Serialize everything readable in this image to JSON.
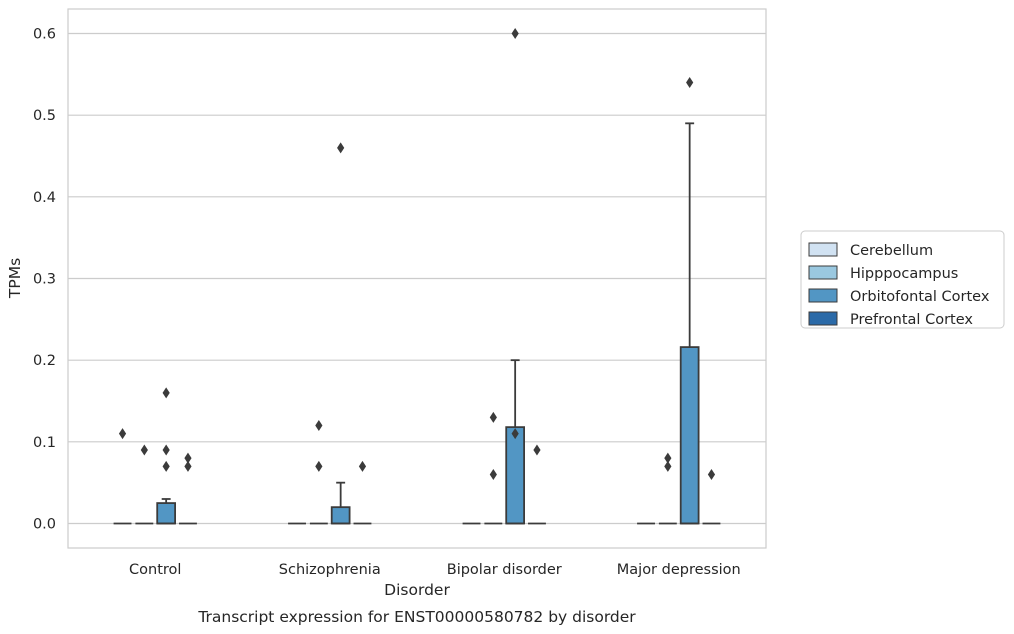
{
  "chart_data": {
    "type": "box",
    "title": "Transcript expression for ENST00000580782 by disorder",
    "xlabel": "Disorder",
    "ylabel": "TPMs",
    "ylim": [
      -0.03,
      0.63
    ],
    "yticks": [
      0.0,
      0.1,
      0.2,
      0.3,
      0.4,
      0.5,
      0.6
    ],
    "ytick_labels": [
      "0.0",
      "0.1",
      "0.2",
      "0.3",
      "0.4",
      "0.5",
      "0.6"
    ],
    "grid": "horizontal",
    "legend_position": "right",
    "categories": [
      "Control",
      "Schizophrenia",
      "Bipolar disorder",
      "Major depression"
    ],
    "series": [
      {
        "name": "Cerebellum",
        "color": "#d1e2f2",
        "boxes": [
          {
            "q1": 0,
            "median": 0,
            "q3": 0,
            "whisker_low": 0,
            "whisker_high": 0,
            "outliers": [
              0.11
            ]
          },
          {
            "q1": 0,
            "median": 0,
            "q3": 0,
            "whisker_low": 0,
            "whisker_high": 0,
            "outliers": []
          },
          {
            "q1": 0,
            "median": 0,
            "q3": 0,
            "whisker_low": 0,
            "whisker_high": 0,
            "outliers": []
          },
          {
            "q1": 0,
            "median": 0,
            "q3": 0,
            "whisker_low": 0,
            "whisker_high": 0,
            "outliers": []
          }
        ]
      },
      {
        "name": "Hipppocampus",
        "color": "#9ac8e0",
        "boxes": [
          {
            "q1": 0,
            "median": 0,
            "q3": 0,
            "whisker_low": 0,
            "whisker_high": 0,
            "outliers": [
              0.09
            ]
          },
          {
            "q1": 0,
            "median": 0,
            "q3": 0,
            "whisker_low": 0,
            "whisker_high": 0,
            "outliers": [
              0.12,
              0.07
            ]
          },
          {
            "q1": 0,
            "median": 0,
            "q3": 0,
            "whisker_low": 0,
            "whisker_high": 0,
            "outliers": [
              0.13,
              0.06
            ]
          },
          {
            "q1": 0,
            "median": 0,
            "q3": 0,
            "whisker_low": 0,
            "whisker_high": 0,
            "outliers": [
              0.08,
              0.07
            ]
          }
        ]
      },
      {
        "name": "Orbitofontal Cortex",
        "color": "#5296c4",
        "boxes": [
          {
            "q1": 0,
            "median": 0,
            "q3": 0.025,
            "whisker_low": 0,
            "whisker_high": 0.03,
            "outliers": [
              0.16,
              0.09,
              0.07
            ]
          },
          {
            "q1": 0,
            "median": 0,
            "q3": 0.02,
            "whisker_low": 0,
            "whisker_high": 0.05,
            "outliers": [
              0.46
            ]
          },
          {
            "q1": 0,
            "median": 0,
            "q3": 0.118,
            "whisker_low": 0,
            "whisker_high": 0.2,
            "outliers": [
              0.6,
              0.11
            ]
          },
          {
            "q1": 0,
            "median": 0,
            "q3": 0.216,
            "whisker_low": 0,
            "whisker_high": 0.49,
            "outliers": [
              0.54
            ]
          }
        ]
      },
      {
        "name": "Prefrontal Cortex",
        "color": "#2b6aa8",
        "boxes": [
          {
            "q1": 0,
            "median": 0,
            "q3": 0,
            "whisker_low": 0,
            "whisker_high": 0,
            "outliers": [
              0.08,
              0.07
            ]
          },
          {
            "q1": 0,
            "median": 0,
            "q3": 0,
            "whisker_low": 0,
            "whisker_high": 0,
            "outliers": [
              0.07
            ]
          },
          {
            "q1": 0,
            "median": 0,
            "q3": 0,
            "whisker_low": 0,
            "whisker_high": 0,
            "outliers": [
              0.09
            ]
          },
          {
            "q1": 0,
            "median": 0,
            "q3": 0,
            "whisker_low": 0,
            "whisker_high": 0,
            "outliers": [
              0.06
            ]
          }
        ]
      }
    ]
  }
}
